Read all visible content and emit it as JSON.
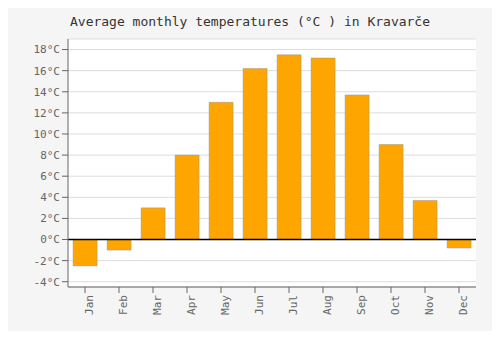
{
  "chart_data": {
    "type": "bar",
    "title": "Average monthly temperatures (°C ) in Kravarče",
    "categories": [
      "Jan",
      "Feb",
      "Mar",
      "Apr",
      "May",
      "Jun",
      "Jul",
      "Aug",
      "Sep",
      "Oct",
      "Nov",
      "Dec"
    ],
    "values": [
      -2.5,
      -1.0,
      3.0,
      8.0,
      13.0,
      16.2,
      17.5,
      17.2,
      13.7,
      9.0,
      3.7,
      -0.8
    ],
    "color": "#FFA500",
    "ylim": [
      -4.5,
      19
    ],
    "yticks": [
      {
        "value": -4,
        "label": "-4°C"
      },
      {
        "value": -2,
        "label": "-2°C"
      },
      {
        "value": 0,
        "label": "0°C"
      },
      {
        "value": 2,
        "label": "2°C"
      },
      {
        "value": 4,
        "label": "4°C"
      },
      {
        "value": 6,
        "label": "6°C"
      },
      {
        "value": 8,
        "label": "8°C"
      },
      {
        "value": 10,
        "label": "10°C"
      },
      {
        "value": 12,
        "label": "12°C"
      },
      {
        "value": 14,
        "label": "14°C"
      },
      {
        "value": 16,
        "label": "16°C"
      },
      {
        "value": 18,
        "label": "18°C"
      }
    ],
    "grid": true
  }
}
